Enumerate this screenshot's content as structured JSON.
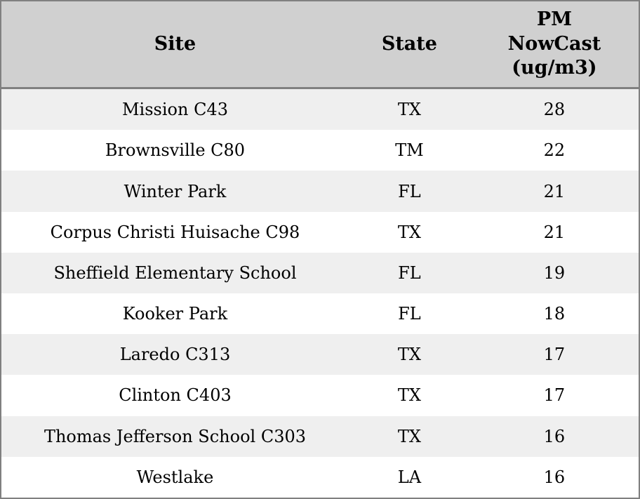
{
  "table": {
    "headers": {
      "site": "Site",
      "state": "State",
      "pm": "PM\nNowCast\n(ug/m3)"
    },
    "rows": [
      {
        "site": "Mission C43",
        "state": "TX",
        "value": "28"
      },
      {
        "site": "Brownsville C80",
        "state": "TM",
        "value": "22"
      },
      {
        "site": "Winter Park",
        "state": "FL",
        "value": "21"
      },
      {
        "site": "Corpus Christi Huisache C98",
        "state": "TX",
        "value": "21"
      },
      {
        "site": "Sheffield Elementary School",
        "state": "FL",
        "value": "19"
      },
      {
        "site": "Kooker Park",
        "state": "FL",
        "value": "18"
      },
      {
        "site": "Laredo C313",
        "state": "TX",
        "value": "17"
      },
      {
        "site": "Clinton C403",
        "state": "TX",
        "value": "17"
      },
      {
        "site": "Thomas Jefferson School C303",
        "state": "TX",
        "value": "16"
      },
      {
        "site": "Westlake",
        "state": "LA",
        "value": "16"
      }
    ]
  },
  "colors": {
    "header_bg": "#d0d0d0",
    "row_odd_bg": "#efefef",
    "row_even_bg": "#ffffff",
    "border": "#808080",
    "text": "#000000"
  },
  "chart_data": {
    "type": "table",
    "title": "",
    "columns": [
      "Site",
      "State",
      "PM NowCast (ug/m3)"
    ],
    "rows": [
      [
        "Mission C43",
        "TX",
        28
      ],
      [
        "Brownsville C80",
        "TM",
        22
      ],
      [
        "Winter Park",
        "FL",
        21
      ],
      [
        "Corpus Christi Huisache C98",
        "TX",
        21
      ],
      [
        "Sheffield Elementary School",
        "FL",
        19
      ],
      [
        "Kooker Park",
        "FL",
        18
      ],
      [
        "Laredo C313",
        "TX",
        17
      ],
      [
        "Clinton C403",
        "TX",
        17
      ],
      [
        "Thomas Jefferson School C303",
        "TX",
        16
      ],
      [
        "Westlake",
        "LA",
        16
      ]
    ]
  }
}
